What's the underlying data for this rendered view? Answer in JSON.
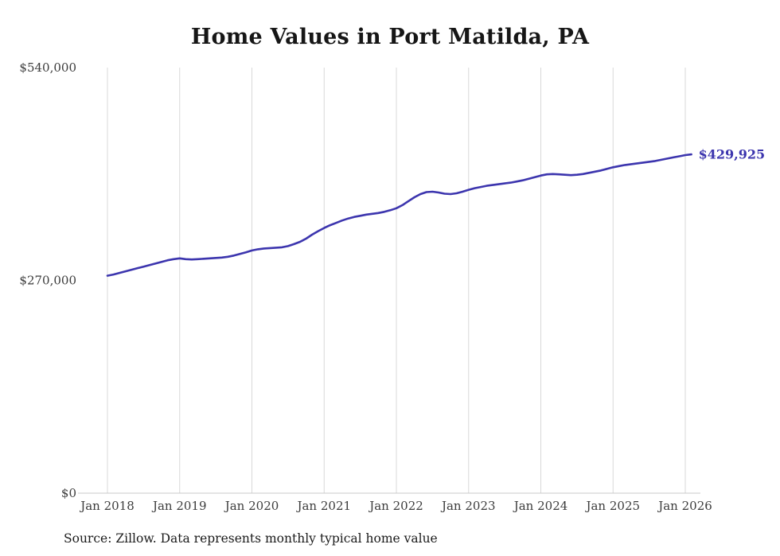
{
  "title": "Home Values in Port Matilda, PA",
  "source_note": "Source: Zillow. Data represents monthly typical home value",
  "end_label": "$429,925",
  "colors": {
    "line": "#3c35ae",
    "grid": "#d8d8d8",
    "baseline": "#c9c9c9",
    "axis_text": "#3c3c3c",
    "title_text": "#161616"
  },
  "chart_data": {
    "type": "line",
    "title": "Home Values in Port Matilda, PA",
    "xlabel": "",
    "ylabel": "",
    "x_interval": "monthly",
    "x_start": "Jan 2018",
    "x_end": "Feb 2026",
    "x_tick_labels": [
      "Jan 2018",
      "Jan 2019",
      "Jan 2020",
      "Jan 2021",
      "Jan 2022",
      "Jan 2023",
      "Jan 2024",
      "Jan 2025",
      "Jan 2026"
    ],
    "y_ticks": [
      0,
      270000,
      540000
    ],
    "y_tick_labels": [
      "$0",
      "$270,000",
      "$540,000"
    ],
    "ylim": [
      0,
      540000
    ],
    "grid": "vertical-only",
    "legend": "none",
    "final_value": 429925,
    "series_name": "Typical home value",
    "values": [
      276000,
      277500,
      279500,
      281500,
      283500,
      285500,
      287500,
      289500,
      291500,
      293500,
      295500,
      297000,
      298000,
      297000,
      296500,
      297000,
      297500,
      298000,
      298500,
      299000,
      300000,
      301500,
      303500,
      305500,
      308000,
      309500,
      310500,
      311000,
      311500,
      312000,
      313500,
      316000,
      319000,
      323000,
      328000,
      332500,
      336500,
      340000,
      343000,
      346000,
      348500,
      350500,
      352000,
      353500,
      354500,
      355500,
      357000,
      359000,
      361500,
      365500,
      370500,
      375500,
      379500,
      382000,
      382500,
      381500,
      380000,
      379500,
      380500,
      382500,
      385000,
      387000,
      388500,
      390000,
      391000,
      392000,
      393000,
      394000,
      395500,
      397000,
      399000,
      401000,
      403000,
      404500,
      405000,
      404500,
      404000,
      403500,
      404000,
      405000,
      406500,
      408000,
      409500,
      411500,
      413500,
      415000,
      416500,
      417500,
      418500,
      419500,
      420500,
      421500,
      423000,
      424500,
      426000,
      427500,
      429000,
      429925
    ]
  }
}
